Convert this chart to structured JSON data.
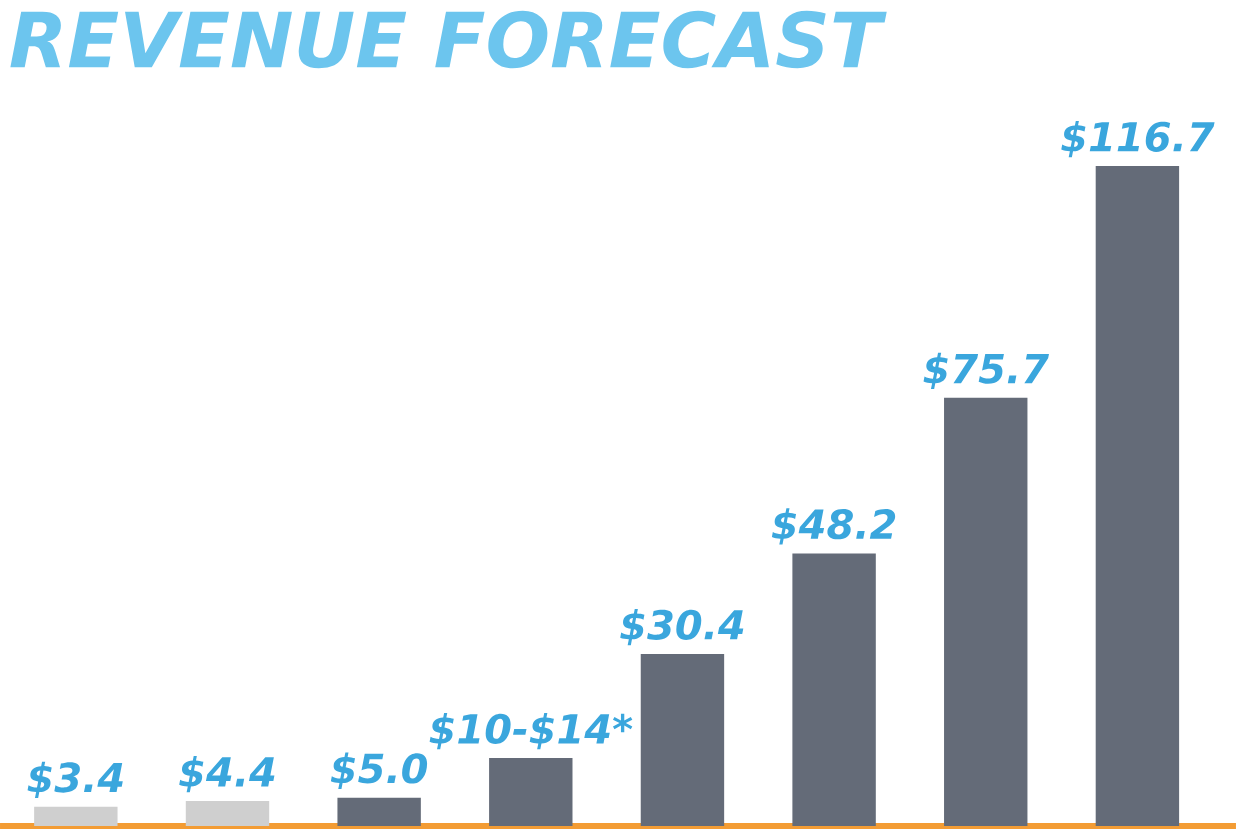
{
  "chart_data": {
    "type": "bar",
    "title": "REVENUE FORECAST",
    "categories": [
      null,
      null,
      null,
      null,
      null,
      null,
      null,
      null
    ],
    "values": [
      3.4,
      4.4,
      5.0,
      12,
      30.4,
      48.2,
      75.7,
      116.7
    ],
    "colors": [
      "#cfcfcf",
      "#cfcfcf",
      "#646b78",
      "#646b78",
      "#646b78",
      "#646b78",
      "#646b78",
      "#646b78"
    ],
    "value_labels": [
      "$3.4",
      "$4.4",
      "$5.0",
      "$10-$14*",
      "$30.4",
      "$48.2",
      "$75.7",
      "$116.7"
    ]
  }
}
